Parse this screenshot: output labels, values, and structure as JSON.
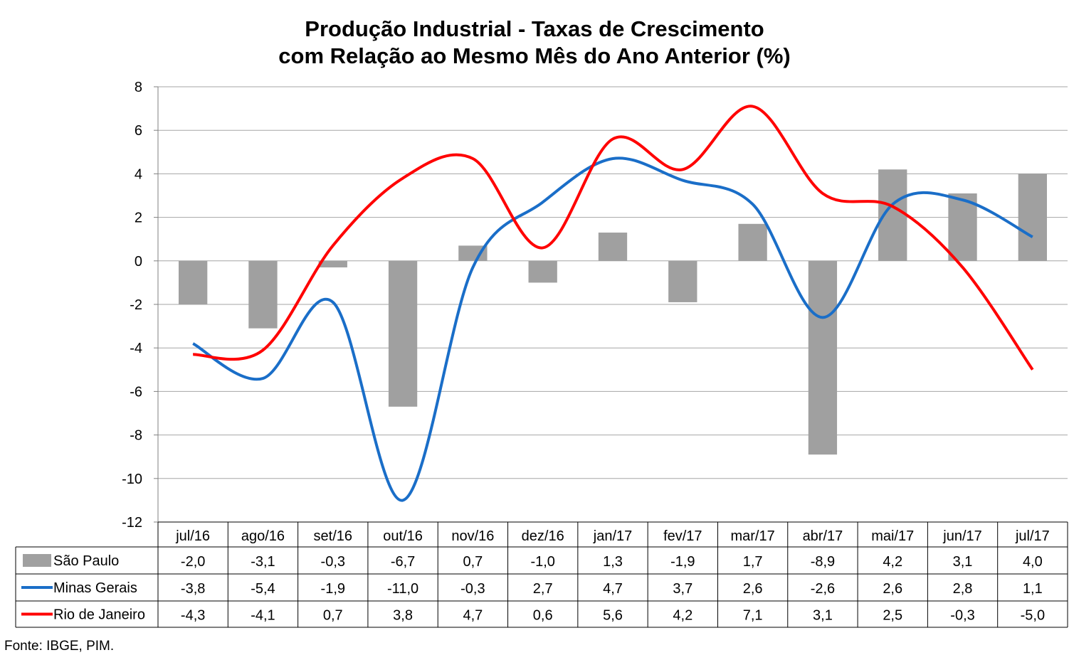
{
  "chart_data": {
    "type": "bar",
    "title": "Produção Industrial - Taxas de Crescimento",
    "subtitle": "com Relação ao Mesmo Mês do Ano Anterior (%)",
    "categories": [
      "jul/16",
      "ago/16",
      "set/16",
      "out/16",
      "nov/16",
      "dez/16",
      "jan/17",
      "fev/17",
      "mar/17",
      "abr/17",
      "mai/17",
      "jun/17",
      "jul/17"
    ],
    "ylim": [
      -12,
      8
    ],
    "yticks": [
      8,
      6,
      4,
      2,
      0,
      -2,
      -4,
      -6,
      -8,
      -10,
      -12
    ],
    "grid": true,
    "legend": "data-table",
    "series": [
      {
        "name": "São Paulo",
        "type": "bar",
        "color": "#a0a0a0",
        "values": [
          -2.0,
          -3.1,
          -0.3,
          -6.7,
          0.7,
          -1.0,
          1.3,
          -1.9,
          1.7,
          -8.9,
          4.2,
          3.1,
          4.0
        ],
        "labels": [
          "-2,0",
          "-3,1",
          "-0,3",
          "-6,7",
          "0,7",
          "-1,0",
          "1,3",
          "-1,9",
          "1,7",
          "-8,9",
          "4,2",
          "3,1",
          "4,0"
        ]
      },
      {
        "name": "Minas Gerais",
        "type": "line",
        "color": "#1a6ec8",
        "values": [
          -3.8,
          -5.4,
          -1.9,
          -11.0,
          -0.3,
          2.7,
          4.7,
          3.7,
          2.6,
          -2.6,
          2.6,
          2.8,
          1.1
        ],
        "labels": [
          "-3,8",
          "-5,4",
          "-1,9",
          "-11,0",
          "-0,3",
          "2,7",
          "4,7",
          "3,7",
          "2,6",
          "-2,6",
          "2,6",
          "2,8",
          "1,1"
        ]
      },
      {
        "name": "Rio de Janeiro",
        "type": "line",
        "color": "#ff0000",
        "values": [
          -4.3,
          -4.1,
          0.7,
          3.8,
          4.7,
          0.6,
          5.6,
          4.2,
          7.1,
          3.1,
          2.5,
          -0.3,
          -5.0
        ],
        "labels": [
          "-4,3",
          "-4,1",
          "0,7",
          "3,8",
          "4,7",
          "0,6",
          "5,6",
          "4,2",
          "7,1",
          "3,1",
          "2,5",
          "-0,3",
          "-5,0"
        ]
      }
    ]
  },
  "source_note": "Fonte: IBGE, PIM."
}
